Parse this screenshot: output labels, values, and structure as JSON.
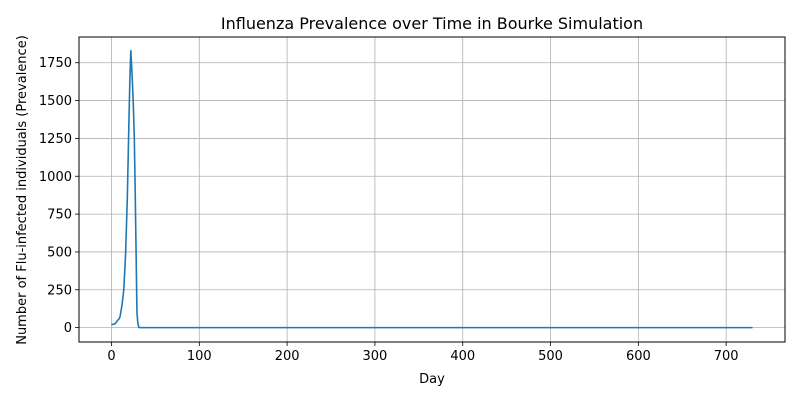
{
  "chart_data": {
    "type": "line",
    "title": "Influenza Prevalence over Time in Bourke Simulation",
    "xlabel": "Day",
    "ylabel": "Number of Flu-infected individuals (Prevalence)",
    "xlim": [
      -37,
      767
    ],
    "ylim": [
      -95,
      1920
    ],
    "xticks": [
      0,
      100,
      200,
      300,
      400,
      500,
      600,
      700
    ],
    "yticks": [
      0,
      250,
      500,
      750,
      1000,
      1250,
      1500,
      1750
    ],
    "grid": true,
    "series": [
      {
        "color": "#1f77b4",
        "points": [
          [
            0,
            20
          ],
          [
            2,
            22
          ],
          [
            4,
            25
          ],
          [
            6,
            40
          ],
          [
            8,
            55
          ],
          [
            9,
            60
          ],
          [
            10,
            80
          ],
          [
            12,
            150
          ],
          [
            14,
            250
          ],
          [
            16,
            480
          ],
          [
            18,
            850
          ],
          [
            20,
            1400
          ],
          [
            21,
            1650
          ],
          [
            22,
            1830
          ],
          [
            23,
            1720
          ],
          [
            24,
            1600
          ],
          [
            25,
            1450
          ],
          [
            26,
            1250
          ],
          [
            27,
            900
          ],
          [
            28,
            500
          ],
          [
            29,
            100
          ],
          [
            30,
            30
          ],
          [
            31,
            5
          ],
          [
            32,
            0
          ],
          [
            40,
            0
          ],
          [
            100,
            0
          ],
          [
            200,
            0
          ],
          [
            300,
            0
          ],
          [
            400,
            0
          ],
          [
            500,
            0
          ],
          [
            600,
            0
          ],
          [
            700,
            0
          ],
          [
            730,
            0
          ]
        ]
      }
    ]
  }
}
